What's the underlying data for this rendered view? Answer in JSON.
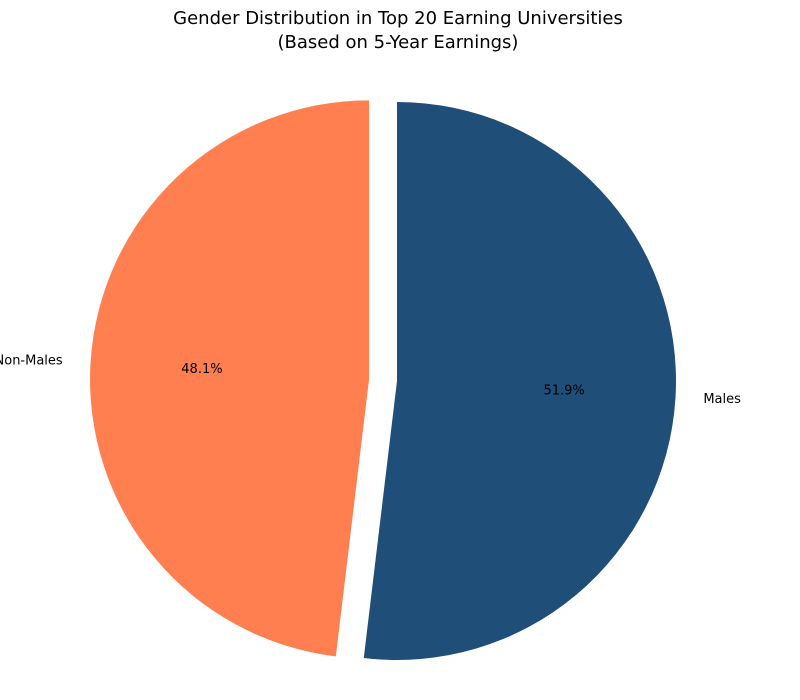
{
  "chart_data": {
    "type": "pie",
    "title_lines": [
      "Gender Distribution in Top 20 Earning Universities",
      "(Based on 5-Year Earnings)"
    ],
    "start_angle_deg": 90,
    "direction": "clockwise",
    "slices": [
      {
        "label": "Males",
        "value": 51.9,
        "pct_label": "51.9%",
        "color": "#1f4e79",
        "exploded": false
      },
      {
        "label": "Non-Males",
        "value": 48.1,
        "pct_label": "48.1%",
        "color": "#ff7f50",
        "exploded": true
      }
    ]
  }
}
